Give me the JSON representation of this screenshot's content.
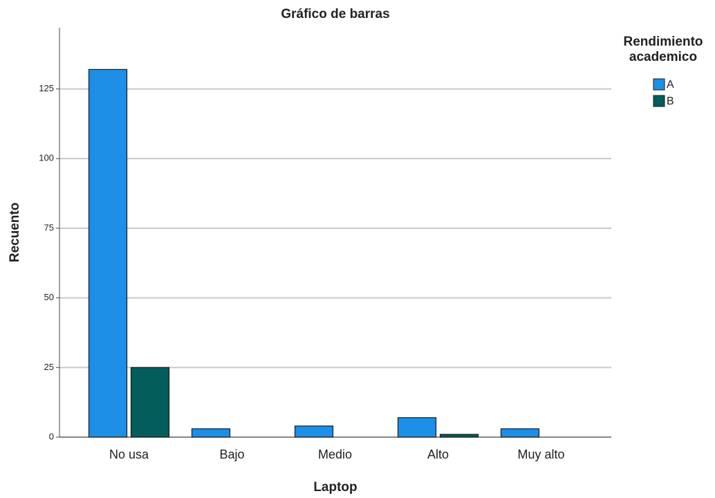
{
  "chart_data": {
    "type": "bar",
    "title": "Gráfico de barras",
    "x_label": "Laptop",
    "y_label": "Recuento",
    "categories": [
      "No usa",
      "Bajo",
      "Medio",
      "Alto",
      "Muy alto"
    ],
    "series": [
      {
        "name": "A",
        "color": "#1e8fe6",
        "values": [
          132,
          3,
          4,
          7,
          3
        ]
      },
      {
        "name": "B",
        "color": "#025d5b",
        "values": [
          25,
          0,
          0,
          1,
          0
        ]
      }
    ],
    "legend_title": "Rendimiento academico",
    "ylim": [
      0,
      147
    ],
    "yticks": [
      0,
      25,
      50,
      75,
      100,
      125
    ],
    "grid": true,
    "legend": "right"
  }
}
